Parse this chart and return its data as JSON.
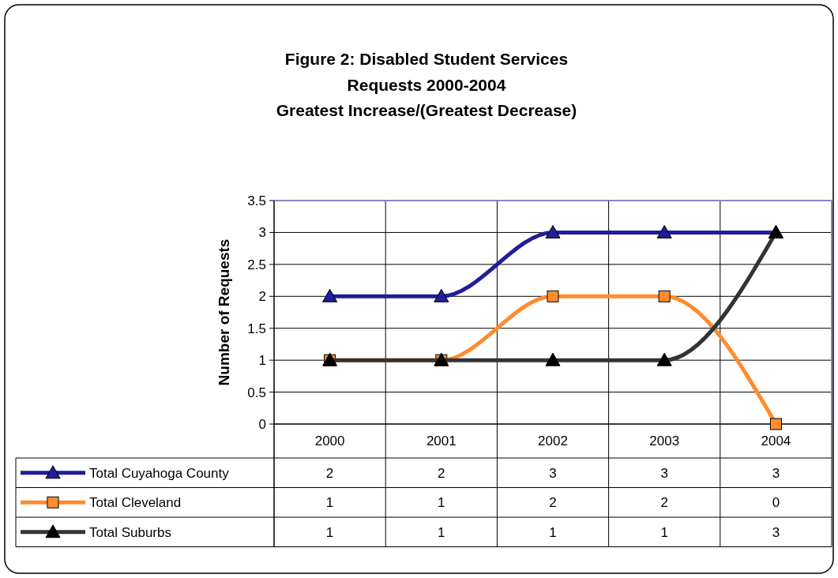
{
  "chart_data": {
    "type": "line",
    "title": "Figure 2:  Disabled Student Services",
    "subtitle": "Requests 2000-2004\nGreatest Increase/(Greatest Decrease)",
    "ylabel": "Number of Requests",
    "categories": [
      "2000",
      "2001",
      "2002",
      "2003",
      "2004"
    ],
    "series": [
      {
        "name": "Total Cuyahoga County",
        "color": "#1f1f99",
        "marker": "triangle",
        "values": [
          2,
          2,
          3,
          3,
          3
        ]
      },
      {
        "name": "Total Cleveland",
        "color": "#ff8c2e",
        "marker": "square",
        "values": [
          1,
          1,
          2,
          2,
          0
        ]
      },
      {
        "name": "Total Suburbs",
        "color": "#333333",
        "marker": "triangle",
        "values": [
          1,
          1,
          1,
          1,
          3
        ]
      }
    ],
    "ylim": [
      0,
      3.5
    ],
    "yticks": [
      0,
      0.5,
      1,
      1.5,
      2,
      2.5,
      3,
      3.5
    ],
    "grid": true,
    "legend": "bottom",
    "data_labels": true
  }
}
